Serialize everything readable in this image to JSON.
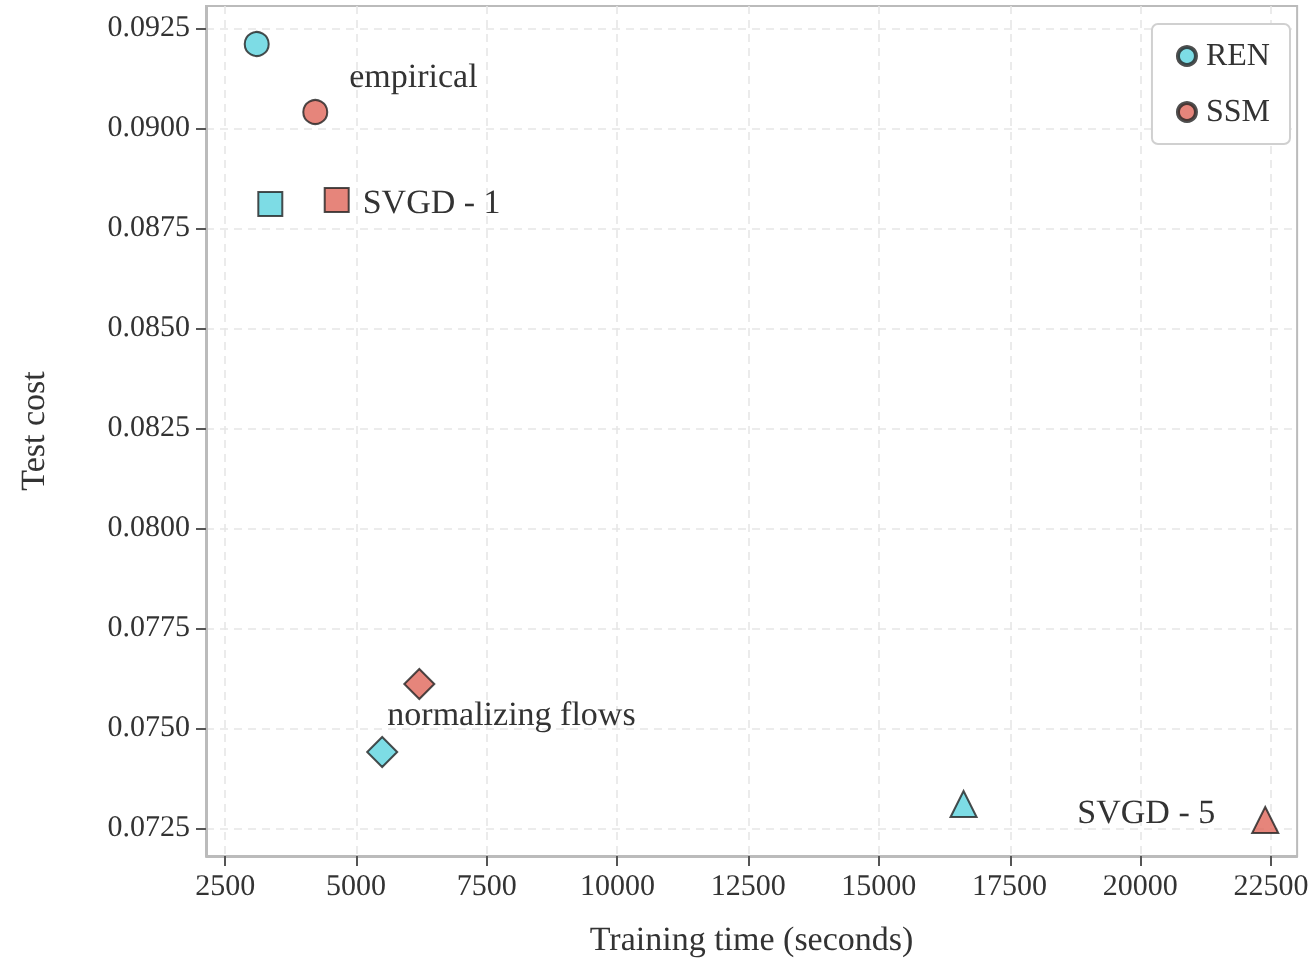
{
  "chart_data": {
    "type": "scatter",
    "xlabel": "Training time (seconds)",
    "ylabel": "Test cost",
    "series": [
      {
        "name": "REN",
        "color": "#5dd3de",
        "x": [
          3100,
          3360,
          5500,
          16620
        ],
        "values": [
          0.0921,
          0.0881,
          0.0744,
          0.0731
        ],
        "marker": [
          "circle",
          "square",
          "diamond",
          "triangle"
        ]
      },
      {
        "name": "SSM",
        "color": "#e0665a",
        "x": [
          4220,
          4630,
          6210,
          22390
        ],
        "values": [
          0.0904,
          0.0882,
          0.0761,
          0.0727
        ],
        "marker": [
          "circle",
          "square",
          "diamond",
          "triangle"
        ]
      }
    ],
    "annotations": [
      "empirical",
      "SVGD - 1",
      "normalizing flows",
      "SVGD - 5"
    ],
    "xlim": [
      2130,
      23000
    ],
    "xticks": [
      2500,
      5000,
      7500,
      10000,
      12500,
      15000,
      17500,
      20000,
      22500
    ],
    "ylim": [
      0.0718,
      0.09305
    ],
    "yticks": [
      0.0725,
      {
        "value": 0.075,
        "label": "0.0750"
      },
      0.0775,
      {
        "value": 0.08,
        "label": "0.0800"
      },
      0.0825,
      {
        "value": 0.085,
        "label": "0.0850"
      },
      0.0875,
      {
        "value": 0.09,
        "label": "0.0900"
      },
      0.0925
    ],
    "grid": true,
    "legend": "top right"
  }
}
